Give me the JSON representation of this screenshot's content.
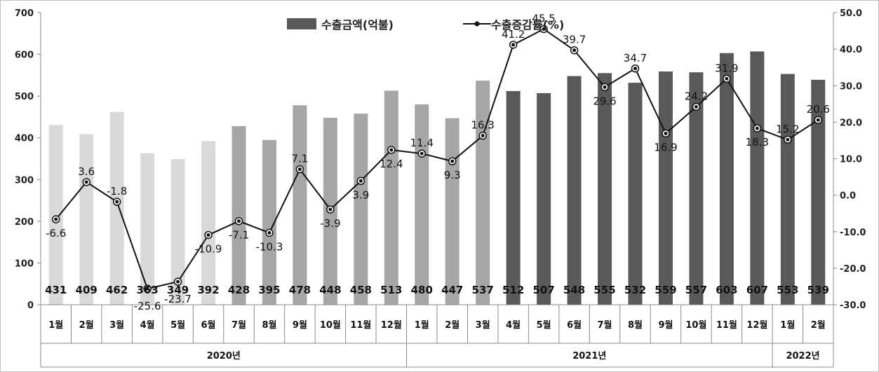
{
  "chart_data": {
    "type": "bar",
    "categories": [
      "1월",
      "2월",
      "3월",
      "4월",
      "5월",
      "6월",
      "7월",
      "8월",
      "9월",
      "10월",
      "11월",
      "12월",
      "1월",
      "2월",
      "3월",
      "4월",
      "5월",
      "6월",
      "7월",
      "8월",
      "9월",
      "10월",
      "11월",
      "12월",
      "1월",
      "2월"
    ],
    "years": [
      {
        "label": "2020년",
        "span": 12
      },
      {
        "label": "2021년",
        "span": 12
      },
      {
        "label": "2022년",
        "span": 2
      }
    ],
    "series": [
      {
        "name": "수출금액(억불)",
        "type": "bar",
        "axis": "left",
        "values": [
          431,
          409,
          462,
          363,
          349,
          392,
          428,
          395,
          478,
          448,
          458,
          513,
          480,
          447,
          537,
          512,
          507,
          548,
          555,
          532,
          559,
          557,
          603,
          607,
          553,
          539
        ],
        "labels": [
          "431",
          "409",
          "462",
          "363",
          "349",
          "392",
          "428",
          "395",
          "478",
          "448",
          "458",
          "513",
          "480",
          "447",
          "537",
          "512",
          "507",
          "548",
          "555",
          "532",
          "559",
          "557",
          "603",
          "607",
          "553",
          "539"
        ],
        "colors": [
          "#d9d9d9",
          "#d9d9d9",
          "#d9d9d9",
          "#d9d9d9",
          "#d9d9d9",
          "#d9d9d9",
          "#a6a6a6",
          "#a6a6a6",
          "#a6a6a6",
          "#a6a6a6",
          "#a6a6a6",
          "#a6a6a6",
          "#a6a6a6",
          "#a6a6a6",
          "#a6a6a6",
          "#595959",
          "#595959",
          "#595959",
          "#595959",
          "#595959",
          "#595959",
          "#595959",
          "#595959",
          "#595959",
          "#595959",
          "#595959"
        ]
      },
      {
        "name": "수출증감률(%)",
        "type": "line",
        "axis": "right",
        "values": [
          -6.6,
          3.6,
          -1.8,
          -25.6,
          -23.7,
          -10.9,
          -7.1,
          -10.3,
          7.1,
          -3.9,
          3.9,
          12.4,
          11.4,
          9.3,
          16.3,
          41.2,
          45.5,
          39.7,
          29.6,
          34.7,
          16.9,
          24.2,
          31.9,
          18.3,
          15.2,
          20.6
        ],
        "labels": [
          "-6.6",
          "3.6",
          "-1.8",
          "-25.6",
          "-23.7",
          "-10.9",
          "-7.1",
          "-10.3",
          "7.1",
          "-3.9",
          "3.9",
          "12.4",
          "11.4",
          "9.3",
          "16.3",
          "41.2",
          "45.5",
          "39.7",
          "29.6",
          "34.7",
          "16.9",
          "24.2",
          "31.9",
          "18.3",
          "15.2",
          "20.6"
        ],
        "color": "#111111"
      }
    ],
    "y_left": {
      "min": 0,
      "max": 700,
      "step": 100,
      "ticks": [
        "0",
        "100",
        "200",
        "300",
        "400",
        "500",
        "600",
        "700"
      ]
    },
    "y_right": {
      "min": -30,
      "max": 50,
      "step": 10,
      "ticks": [
        "-30.0",
        "-20.0",
        "-10.0",
        "0.0",
        "10.0",
        "20.0",
        "30.0",
        "40.0",
        "50.0"
      ]
    },
    "legend_position": "top-center",
    "grid": false
  }
}
